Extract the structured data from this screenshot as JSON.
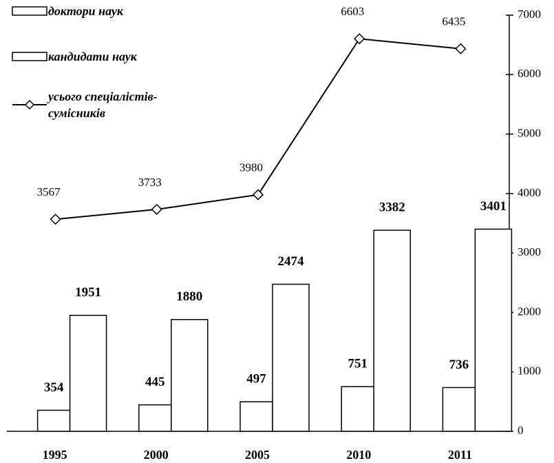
{
  "chart_data": {
    "type": "bar",
    "categories": [
      "1995",
      "2000",
      "2005",
      "2010",
      "2011"
    ],
    "series": [
      {
        "name": "доктори наук",
        "type": "bar",
        "color": "#ffffff",
        "values": [
          354,
          445,
          497,
          751,
          736
        ]
      },
      {
        "name": "кандидати наук",
        "type": "bar",
        "color": "#ffffff",
        "values": [
          1951,
          1880,
          2474,
          3382,
          3401
        ]
      },
      {
        "name": "усього спеціалістів-сумісників",
        "type": "line",
        "color": "#000000",
        "values": [
          3567,
          3733,
          3980,
          6603,
          6435
        ]
      }
    ],
    "ylim": [
      0,
      7000
    ],
    "yticks": [
      0,
      1000,
      2000,
      3000,
      4000,
      5000,
      6000,
      7000
    ],
    "grid": false,
    "legend": "top-left"
  }
}
